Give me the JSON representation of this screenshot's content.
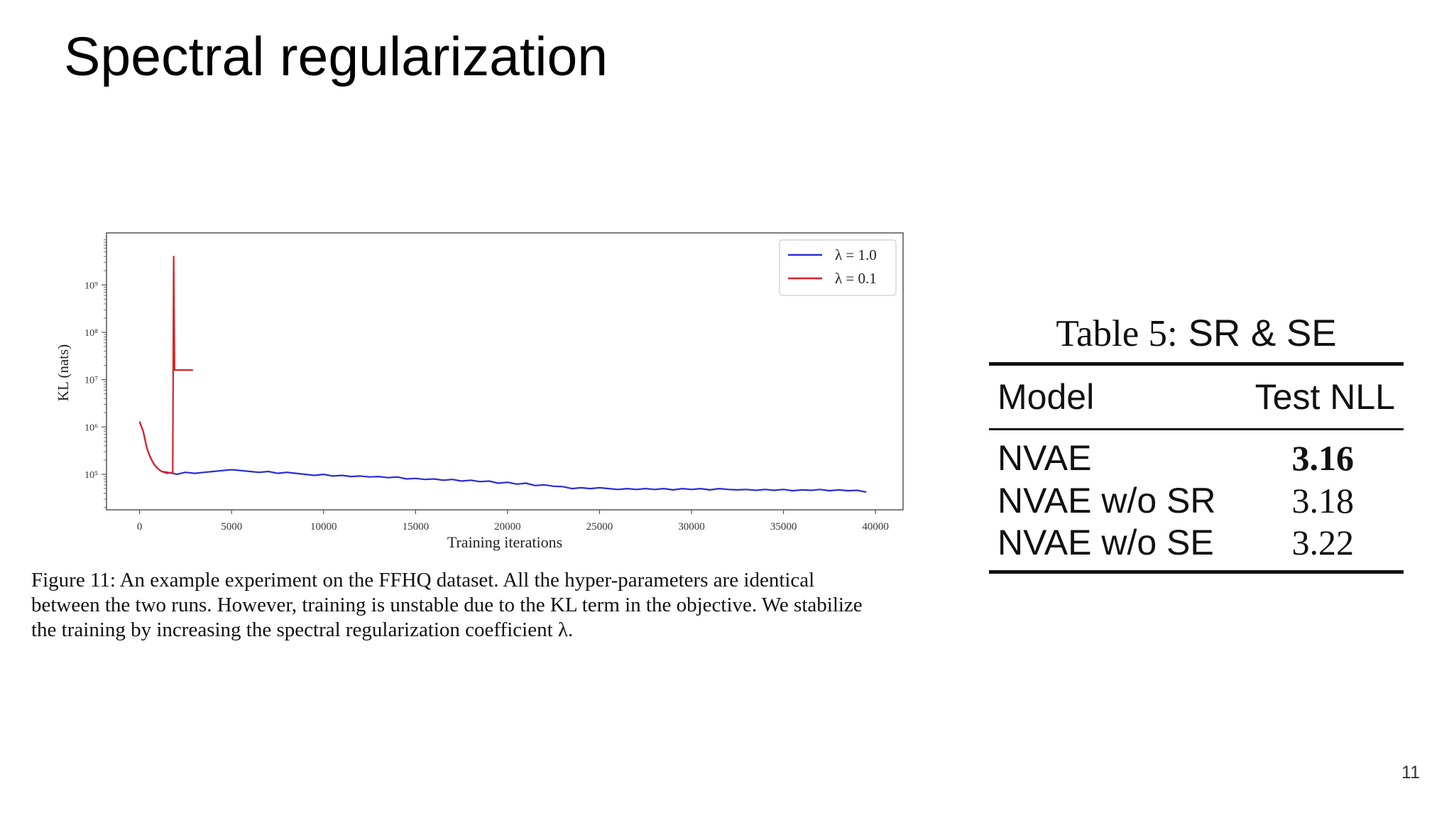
{
  "slide": {
    "title": "Spectral regularization",
    "page_number": "11"
  },
  "figure": {
    "caption_lines": [
      "Figure 11:  An example experiment on the FFHQ dataset.  All the hyper-parameters are identical",
      "between the two runs. However, training is unstable due to the KL term in the objective. We stabilize",
      "the training by increasing the spectral regularization coefficient λ."
    ]
  },
  "chart_data": {
    "type": "line",
    "title": "",
    "xlabel": "Training iterations",
    "ylabel": "KL (nats)",
    "xlim": [
      -1800,
      41500
    ],
    "ylim_log10": [
      4.25,
      10.1
    ],
    "yscale": "log",
    "xticks": [
      0,
      5000,
      10000,
      15000,
      20000,
      25000,
      30000,
      35000,
      40000
    ],
    "xtick_labels": [
      "0",
      "5000",
      "10000",
      "15000",
      "20000",
      "25000",
      "30000",
      "35000",
      "40000"
    ],
    "yticks_log10": [
      5,
      6,
      7,
      8,
      9
    ],
    "ytick_labels": [
      "10⁵",
      "10⁶",
      "10⁷",
      "10⁸",
      "10⁹"
    ],
    "grid": false,
    "legend_position": "top-right",
    "series": [
      {
        "name": "λ = 1.0",
        "color": "#2b2bd9",
        "x": [
          0,
          200,
          400,
          600,
          800,
          1000,
          1200,
          1500,
          1800,
          2000,
          2500,
          3000,
          3500,
          4000,
          4500,
          5000,
          5500,
          6000,
          6500,
          7000,
          7500,
          8000,
          8500,
          9000,
          9500,
          10000,
          10500,
          11000,
          11500,
          12000,
          12500,
          13000,
          13500,
          14000,
          14500,
          15000,
          15500,
          16000,
          16500,
          17000,
          17500,
          18000,
          18500,
          19000,
          19500,
          20000,
          20500,
          21000,
          21500,
          22000,
          22500,
          23000,
          23500,
          24000,
          24500,
          25000,
          25500,
          26000,
          26500,
          27000,
          27500,
          28000,
          28500,
          29000,
          29500,
          30000,
          30500,
          31000,
          31500,
          32000,
          32500,
          33000,
          33500,
          34000,
          34500,
          35000,
          35500,
          36000,
          36500,
          37000,
          37500,
          38000,
          38500,
          39000,
          39500
        ],
        "y": [
          1300000.0,
          800000.0,
          350000.0,
          220000.0,
          160000.0,
          130000.0,
          115000.0,
          110000.0,
          105000.0,
          100000.0,
          110000.0,
          105000.0,
          110000.0,
          115000.0,
          120000.0,
          125000.0,
          120000.0,
          115000.0,
          110000.0,
          115000.0,
          105000.0,
          110000.0,
          105000.0,
          100000.0,
          95000.0,
          100000.0,
          92000.0,
          95000.0,
          90000.0,
          92000.0,
          88000.0,
          90000.0,
          85000.0,
          88000.0,
          80000.0,
          82000.0,
          78000.0,
          80000.0,
          75000.0,
          78000.0,
          72000.0,
          75000.0,
          70000.0,
          72000.0,
          65000.0,
          68000.0,
          62000.0,
          65000.0,
          58000.0,
          60000.0,
          56000.0,
          55000.0,
          50000.0,
          52000.0,
          50000.0,
          52000.0,
          50000.0,
          48000.0,
          50000.0,
          48000.0,
          50000.0,
          48000.0,
          50000.0,
          47000.0,
          50000.0,
          48000.0,
          50000.0,
          47000.0,
          50000.0,
          48000.0,
          47000.0,
          48000.0,
          46000.0,
          48000.0,
          46000.0,
          48000.0,
          45000.0,
          47000.0,
          46000.0,
          48000.0,
          45000.0,
          47000.0,
          45000.0,
          46000.0,
          42000.0
        ]
      },
      {
        "name": "λ = 0.1",
        "color": "#dd2222",
        "x": [
          0,
          200,
          400,
          600,
          800,
          1000,
          1200,
          1500,
          1800,
          1850,
          1900,
          2000,
          2100,
          2200,
          2400,
          2600,
          2800,
          2900
        ],
        "y": [
          1300000.0,
          800000.0,
          350000.0,
          220000.0,
          160000.0,
          130000.0,
          115000.0,
          105000.0,
          110000.0,
          4000000000.0,
          16000000.0,
          16000000.0,
          16000000.0,
          16000000.0,
          16000000.0,
          16000000.0,
          16000000.0,
          16000000.0
        ]
      }
    ]
  },
  "table": {
    "caption_prefix": "Table 5:",
    "caption_rest": "SR & SE",
    "headers": [
      "Model",
      "Test NLL"
    ],
    "rows": [
      {
        "model": "NVAE",
        "nll": "3.16",
        "best": true
      },
      {
        "model": "NVAE w/o SR",
        "nll": "3.18",
        "best": false
      },
      {
        "model": "NVAE w/o SE",
        "nll": "3.22",
        "best": false
      }
    ]
  }
}
